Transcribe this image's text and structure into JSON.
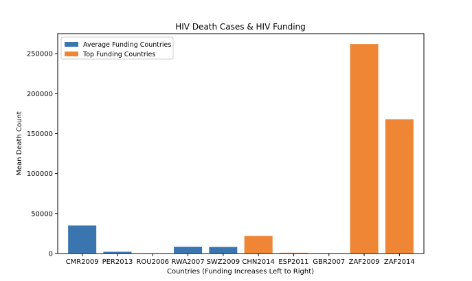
{
  "chart_data": {
    "type": "bar",
    "title": "HIV Death Cases & HIV Funding",
    "xlabel": "Countries (Funding Increases Left to Right)",
    "ylabel": "Mean Death Count",
    "ylim": [
      0,
      275000
    ],
    "yticks": [
      0,
      50000,
      100000,
      150000,
      200000,
      250000
    ],
    "categories": [
      "CMR2009",
      "PER2013",
      "ROU2006",
      "RWA2007",
      "SWZ2009",
      "CHN2014",
      "ESP2011",
      "GBR2007",
      "ZAF2009",
      "ZAF2014"
    ],
    "values": [
      35000,
      2200,
      200,
      8500,
      8300,
      22000,
      1000,
      500,
      262000,
      168000
    ],
    "groups": [
      "Average Funding Countries",
      "Average Funding Countries",
      "Average Funding Countries",
      "Average Funding Countries",
      "Average Funding Countries",
      "Top Funding Countries",
      "Top Funding Countries",
      "Top Funding Countries",
      "Top Funding Countries",
      "Top Funding Countries"
    ],
    "series": [
      {
        "name": "Average Funding Countries",
        "color": "#3a75b0"
      },
      {
        "name": "Top Funding Countries",
        "color": "#ef8636"
      }
    ],
    "legend_position": "top-left",
    "grid": false
  }
}
